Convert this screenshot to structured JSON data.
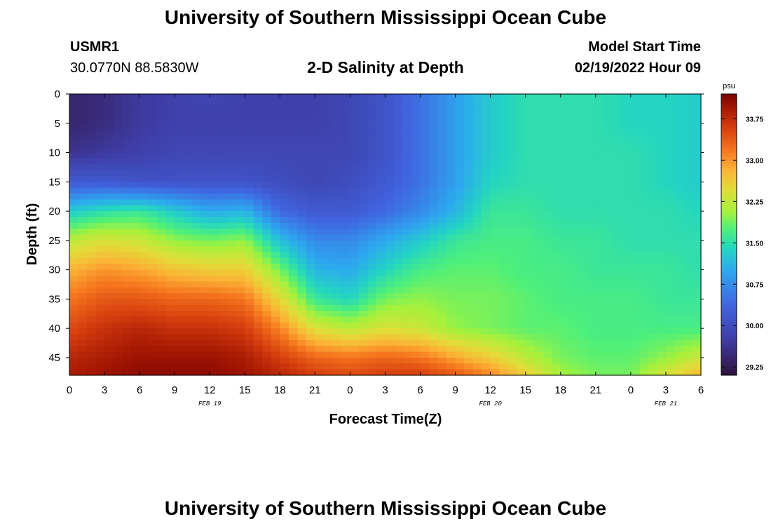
{
  "page": {
    "title_top": "University of Southern Mississippi Ocean Cube",
    "title_bottom": "University of Southern Mississippi Ocean Cube",
    "station_id": "USMR1",
    "station_coords": "30.0770N  88.5830W",
    "model_start_label": "Model Start Time",
    "model_start_value": "02/19/2022 Hour 09",
    "plot_title": "2-D Salinity at Depth"
  },
  "chart_data": {
    "type": "heatmap",
    "title": "2-D Salinity at Depth",
    "xlabel": "Forecast Time(Z)",
    "ylabel": "Depth (ft)",
    "x_range_hours": [
      0,
      54
    ],
    "x_ticks": [
      {
        "hour": 0,
        "label": "0"
      },
      {
        "hour": 3,
        "label": "3"
      },
      {
        "hour": 6,
        "label": "6"
      },
      {
        "hour": 9,
        "label": "9"
      },
      {
        "hour": 12,
        "label": "12"
      },
      {
        "hour": 15,
        "label": "15"
      },
      {
        "hour": 18,
        "label": "18"
      },
      {
        "hour": 21,
        "label": "21"
      },
      {
        "hour": 24,
        "label": "0"
      },
      {
        "hour": 27,
        "label": "3"
      },
      {
        "hour": 30,
        "label": "6"
      },
      {
        "hour": 33,
        "label": "9"
      },
      {
        "hour": 36,
        "label": "12"
      },
      {
        "hour": 39,
        "label": "15"
      },
      {
        "hour": 42,
        "label": "18"
      },
      {
        "hour": 45,
        "label": "21"
      },
      {
        "hour": 48,
        "label": "0"
      },
      {
        "hour": 51,
        "label": "3"
      },
      {
        "hour": 54,
        "label": "6"
      }
    ],
    "date_labels": [
      {
        "hour": 12,
        "label": "FEB 19"
      },
      {
        "hour": 36,
        "label": "FEB 20"
      },
      {
        "hour": 51,
        "label": "FEB 21"
      }
    ],
    "y_range_ft": [
      0,
      48
    ],
    "y_ticks": [
      0,
      5,
      10,
      15,
      20,
      25,
      30,
      35,
      40,
      45
    ],
    "colorbar": {
      "unit": "psu",
      "range": [
        29.1,
        34.2
      ],
      "ticks": [
        "29.25",
        "30.00",
        "30.75",
        "31.50",
        "32.25",
        "33.00",
        "33.75"
      ]
    },
    "time_hours": [
      0,
      3,
      6,
      9,
      12,
      15,
      18,
      21,
      24,
      27,
      30,
      33,
      36,
      39,
      42,
      45,
      48,
      51,
      54
    ],
    "depth_ft": [
      0,
      5,
      10,
      15,
      20,
      25,
      30,
      35,
      40,
      45,
      48
    ],
    "salinity_psu": [
      [
        29.4,
        29.5,
        29.7,
        29.8,
        29.9,
        29.8,
        29.8,
        29.8,
        29.9,
        30.1,
        30.5,
        30.9,
        31.3,
        31.5,
        31.5,
        31.5,
        31.4,
        31.4,
        31.3
      ],
      [
        29.4,
        29.5,
        29.7,
        29.8,
        29.8,
        29.8,
        29.8,
        29.8,
        29.9,
        30.1,
        30.5,
        30.9,
        31.3,
        31.5,
        31.5,
        31.5,
        31.4,
        31.4,
        31.3
      ],
      [
        29.6,
        29.7,
        29.8,
        29.9,
        29.9,
        29.9,
        29.9,
        29.9,
        29.9,
        30.1,
        30.5,
        30.9,
        31.3,
        31.5,
        31.5,
        31.5,
        31.5,
        31.4,
        31.3
      ],
      [
        30.2,
        30.2,
        30.1,
        30.1,
        30.1,
        30.1,
        30.0,
        29.9,
        30.0,
        30.2,
        30.5,
        30.9,
        31.4,
        31.5,
        31.5,
        31.5,
        31.5,
        31.4,
        31.3
      ],
      [
        31.3,
        31.5,
        31.6,
        31.3,
        31.0,
        31.1,
        30.4,
        30.2,
        30.2,
        30.4,
        30.7,
        31.1,
        31.6,
        31.6,
        31.5,
        31.5,
        31.5,
        31.5,
        31.4
      ],
      [
        32.2,
        32.4,
        32.3,
        32.0,
        31.9,
        32.0,
        31.2,
        30.7,
        30.7,
        31.0,
        31.3,
        31.6,
        31.7,
        31.7,
        31.6,
        31.6,
        31.5,
        31.5,
        31.5
      ],
      [
        32.8,
        33.0,
        32.9,
        32.7,
        32.6,
        32.6,
        31.9,
        31.1,
        31.0,
        31.4,
        31.7,
        31.8,
        31.8,
        31.7,
        31.7,
        31.6,
        31.6,
        31.6,
        31.5
      ],
      [
        33.2,
        33.4,
        33.4,
        33.3,
        33.3,
        33.2,
        32.5,
        31.6,
        31.4,
        31.9,
        32.0,
        31.9,
        31.9,
        31.8,
        31.7,
        31.7,
        31.7,
        31.6,
        31.6
      ],
      [
        33.5,
        33.7,
        33.8,
        33.7,
        33.7,
        33.6,
        33.1,
        32.4,
        32.2,
        32.4,
        32.3,
        32.0,
        31.9,
        31.8,
        31.8,
        31.7,
        31.7,
        31.7,
        31.7
      ],
      [
        33.8,
        33.9,
        34.0,
        34.0,
        34.0,
        33.9,
        33.6,
        33.3,
        33.2,
        33.3,
        33.2,
        32.9,
        32.6,
        32.2,
        31.9,
        31.8,
        31.8,
        32.0,
        32.3
      ],
      [
        33.9,
        34.0,
        34.1,
        34.1,
        34.1,
        34.0,
        33.8,
        33.6,
        33.5,
        33.6,
        33.6,
        33.4,
        33.1,
        32.6,
        32.1,
        31.9,
        31.9,
        32.4,
        32.8
      ]
    ]
  }
}
